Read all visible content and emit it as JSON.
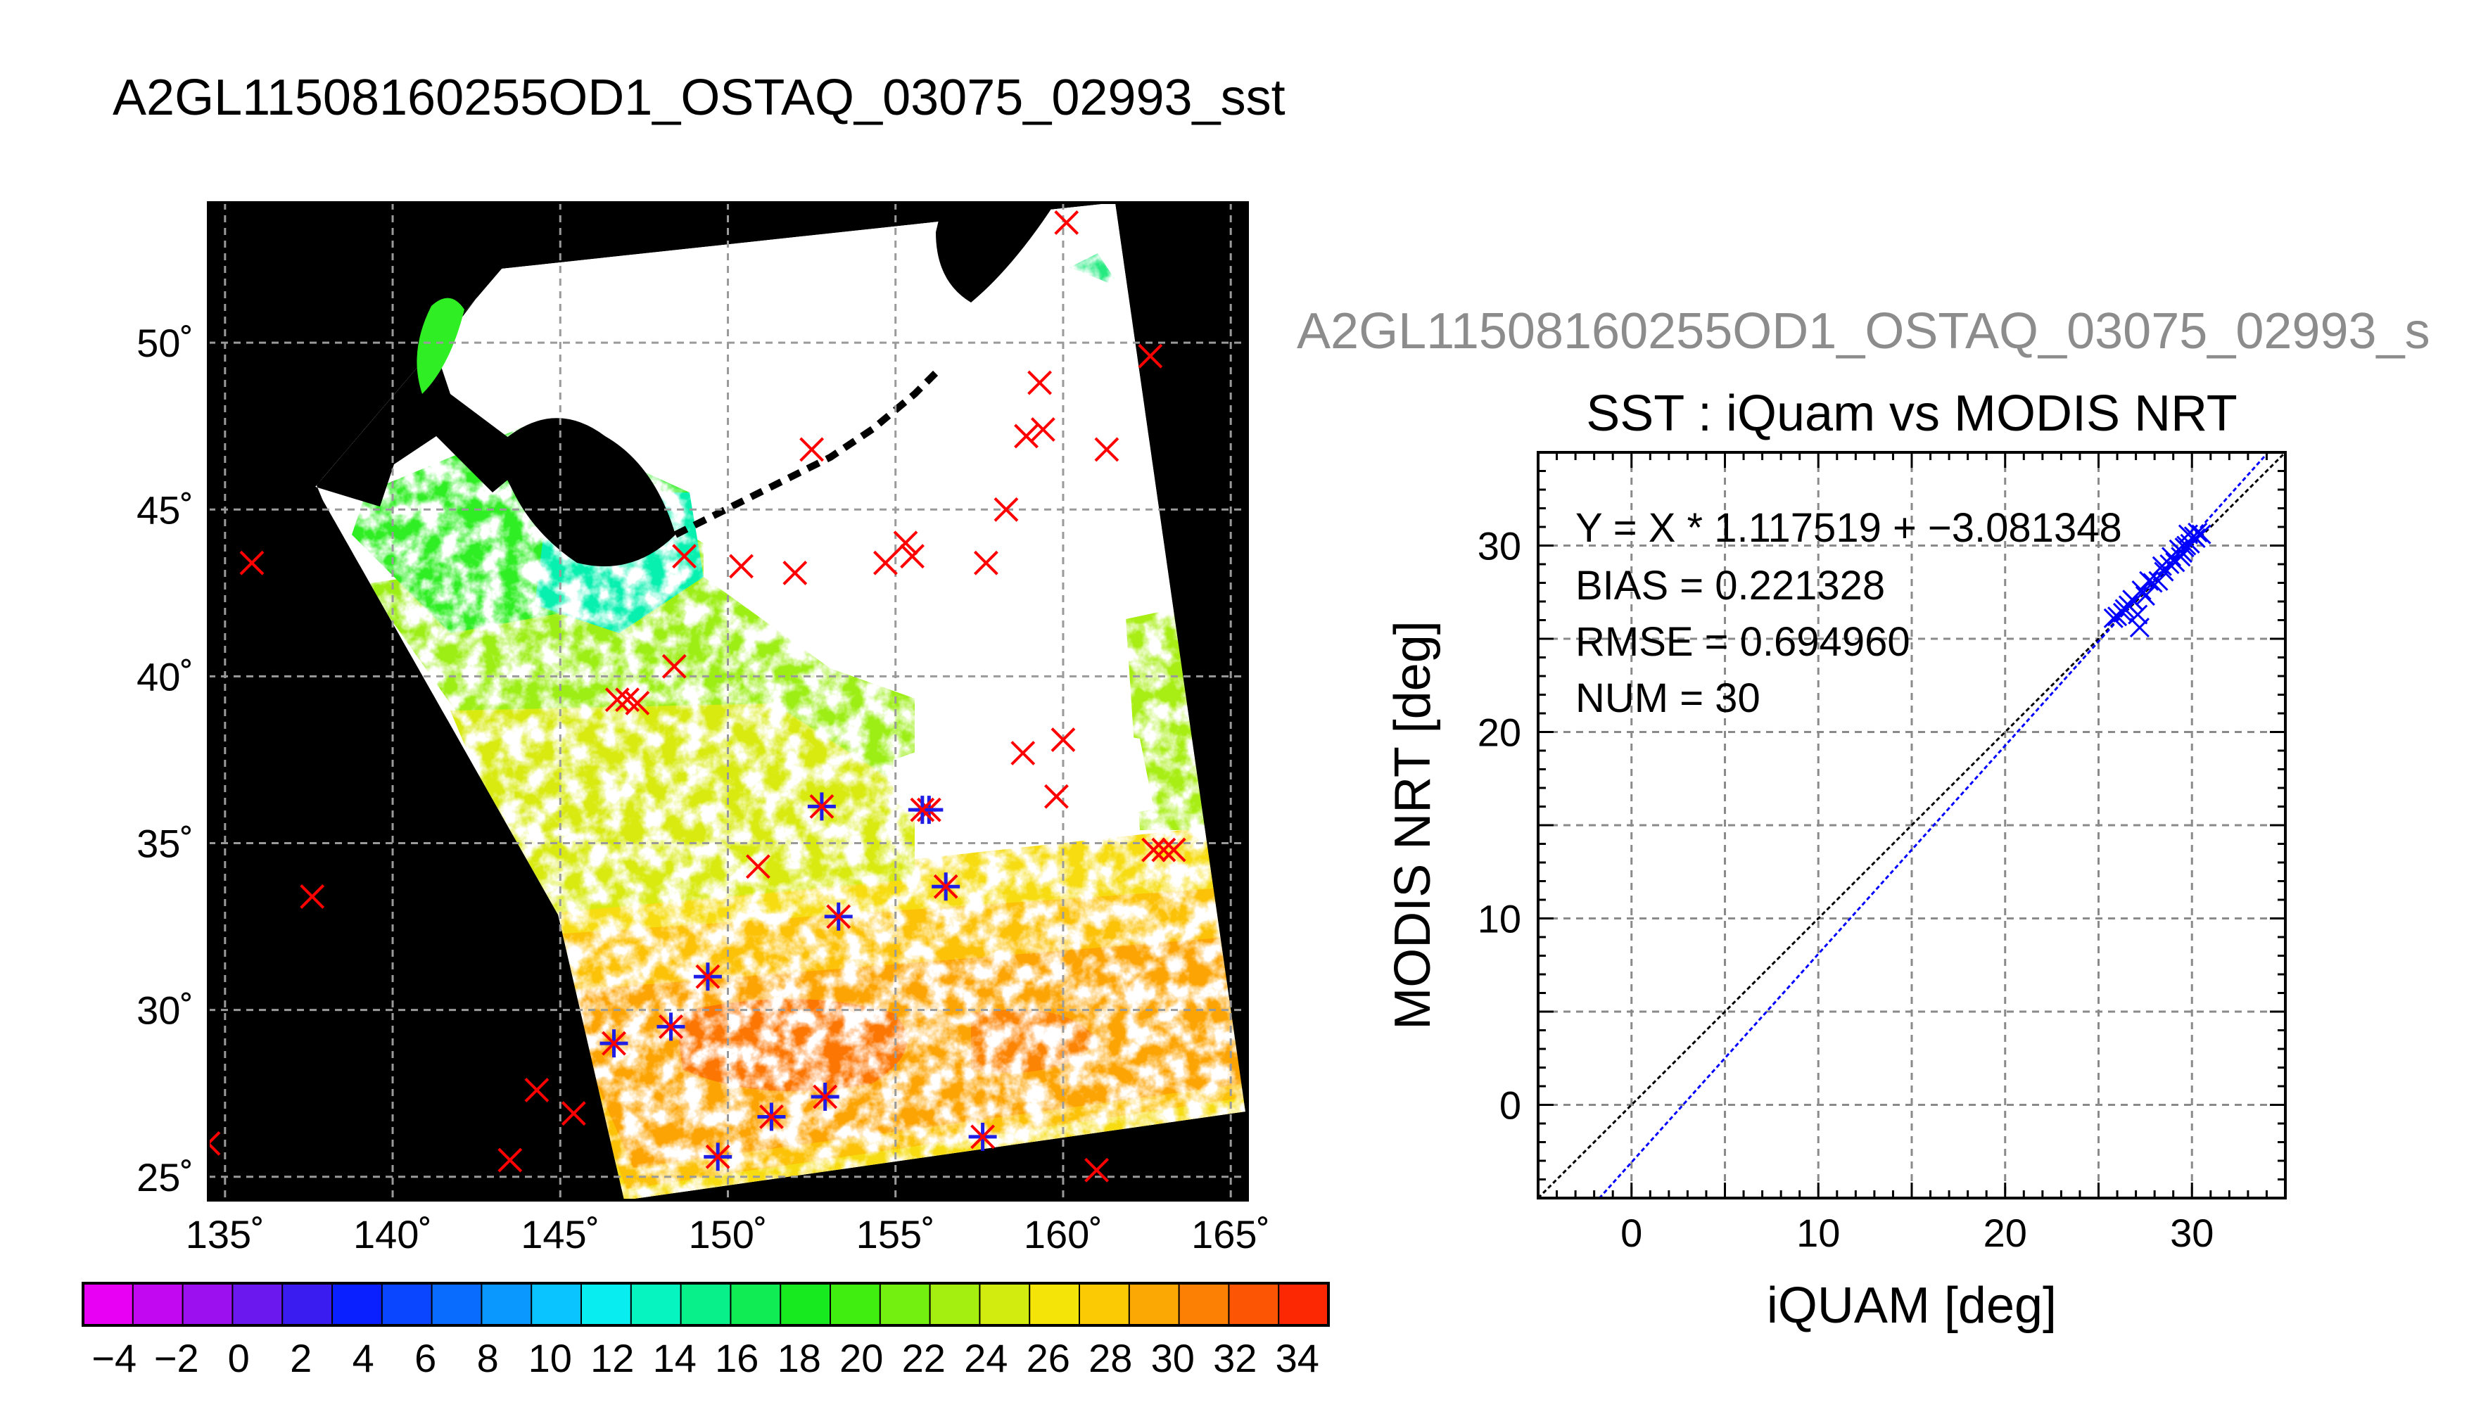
{
  "title": "A2GL11508160255OD1_OSTAQ_03075_02993_sst",
  "scatter_file_title": "A2GL11508160255OD1_OSTAQ_03075_02993_s",
  "colors": {
    "land": "#000000",
    "cloud": "#ffffff",
    "match_marker": "#ff0000",
    "valid_marker": "#1e1ee6",
    "fit_line": "#0000ff",
    "identity_line": "#000000"
  },
  "chart_data": [
    {
      "type": "map",
      "lon_ticks": [
        "135˚",
        "140˚",
        "145˚",
        "150˚",
        "155˚",
        "160˚",
        "165˚"
      ],
      "lat_ticks": [
        "25˚",
        "30˚",
        "35˚",
        "40˚",
        "45˚",
        "50˚"
      ],
      "lon_range": [
        134.5,
        165.5
      ],
      "lat_range": [
        24.3,
        54.2
      ],
      "grid": true,
      "match_points": [
        [
          160.1,
          53.6
        ],
        [
          162.6,
          49.6
        ],
        [
          159.3,
          48.8
        ],
        [
          158.9,
          47.2
        ],
        [
          159.4,
          47.4
        ],
        [
          161.3,
          46.8
        ],
        [
          152.5,
          46.8
        ],
        [
          158.3,
          45.0
        ],
        [
          155.3,
          44.0
        ],
        [
          155.5,
          43.6
        ],
        [
          154.7,
          43.4
        ],
        [
          157.7,
          43.4
        ],
        [
          152.0,
          43.1
        ],
        [
          150.4,
          43.3
        ],
        [
          148.7,
          43.6
        ],
        [
          135.8,
          43.4
        ],
        [
          148.4,
          40.3
        ],
        [
          146.7,
          39.3
        ],
        [
          147.0,
          39.3
        ],
        [
          147.3,
          39.2
        ],
        [
          160.0,
          38.1
        ],
        [
          158.8,
          37.7
        ],
        [
          159.8,
          36.4
        ],
        [
          150.9,
          34.3
        ],
        [
          162.7,
          34.8
        ],
        [
          163.0,
          34.8
        ],
        [
          163.3,
          34.8
        ],
        [
          137.6,
          33.4
        ],
        [
          144.3,
          27.6
        ],
        [
          145.4,
          26.9
        ],
        [
          143.5,
          25.5
        ],
        [
          161.0,
          25.2
        ],
        [
          134.5,
          26.0
        ]
      ],
      "valid_points": [
        [
          152.8,
          36.1
        ],
        [
          156.0,
          36.0
        ],
        [
          155.8,
          36.0
        ],
        [
          153.3,
          32.8
        ],
        [
          156.5,
          33.7
        ],
        [
          149.4,
          31.0
        ],
        [
          146.6,
          29.0
        ],
        [
          148.3,
          29.5
        ],
        [
          152.9,
          27.4
        ],
        [
          151.3,
          26.8
        ],
        [
          149.7,
          25.6
        ],
        [
          157.6,
          26.2
        ]
      ],
      "colorbar": {
        "labels": [
          "−4",
          "−2",
          "0",
          "2",
          "4",
          "6",
          "8",
          "10",
          "12",
          "14",
          "16",
          "18",
          "20",
          "22",
          "24",
          "26",
          "28",
          "30",
          "32",
          "34"
        ],
        "range": [
          -5,
          35
        ],
        "step": 2,
        "colors": [
          "#e800f4",
          "#c208f0",
          "#9c10f0",
          "#6a18ee",
          "#3a1cf0",
          "#0a20ff",
          "#0a46ff",
          "#0a6cff",
          "#0a98ff",
          "#0ac4ff",
          "#08eef0",
          "#06f4c0",
          "#08f08a",
          "#10ec54",
          "#18ea20",
          "#40ee10",
          "#74f010",
          "#a4ee10",
          "#d2ec10",
          "#f4e408",
          "#fcca04",
          "#fca804",
          "#fc8004",
          "#fc5604",
          "#fc2804"
        ]
      }
    },
    {
      "type": "scatter",
      "title": "SST : iQuam vs MODIS NRT",
      "xlabel": "iQUAM [deg]",
      "ylabel": "MODIS NRT [deg]",
      "xlim": [
        -5,
        35
      ],
      "ylim": [
        -5,
        35
      ],
      "x_ticks": [
        "0",
        "10",
        "20",
        "30"
      ],
      "y_ticks": [
        "0",
        "10",
        "20",
        "30"
      ],
      "grid": true,
      "annotations": [
        "Y = X * 1.117519 + −3.081348",
        "BIAS = 0.221328",
        "RMSE = 0.694960",
        "NUM = 30"
      ],
      "fit": {
        "slope": 1.117519,
        "intercept": -3.081348
      },
      "points": [
        [
          25.8,
          26.1
        ],
        [
          26.0,
          26.2
        ],
        [
          26.3,
          26.4
        ],
        [
          26.6,
          26.8
        ],
        [
          26.9,
          27.0
        ],
        [
          27.1,
          26.3
        ],
        [
          27.2,
          25.6
        ],
        [
          27.5,
          27.3
        ],
        [
          27.9,
          28.0
        ],
        [
          28.2,
          28.1
        ],
        [
          28.5,
          28.6
        ],
        [
          28.8,
          29.0
        ],
        [
          29.1,
          29.1
        ],
        [
          29.4,
          29.4
        ],
        [
          29.5,
          29.6
        ],
        [
          29.7,
          30.0
        ],
        [
          29.9,
          30.1
        ],
        [
          30.1,
          30.5
        ],
        [
          30.3,
          30.7
        ],
        [
          30.5,
          30.6
        ],
        [
          29.8,
          30.6
        ],
        [
          29.3,
          29.8
        ],
        [
          28.9,
          29.4
        ],
        [
          28.4,
          28.9
        ],
        [
          27.7,
          28.1
        ],
        [
          27.3,
          27.6
        ],
        [
          26.8,
          27.1
        ],
        [
          26.4,
          26.6
        ],
        [
          30.2,
          30.4
        ],
        [
          29.6,
          29.9
        ]
      ]
    }
  ]
}
